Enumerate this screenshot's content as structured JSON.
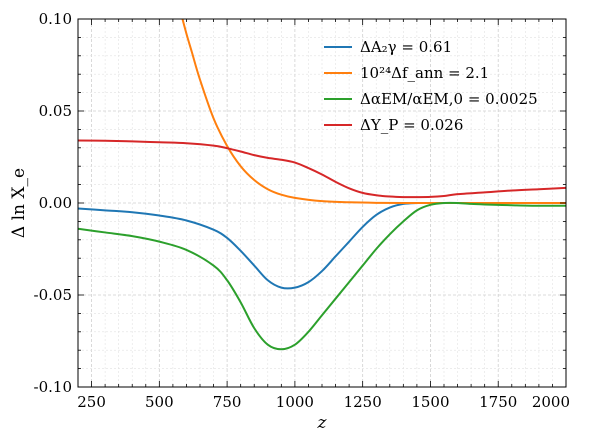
{
  "chart_data": {
    "type": "line",
    "xlabel": "z",
    "ylabel": "Δ  ln X_e",
    "xlim": [
      200,
      2000
    ],
    "ylim": [
      -0.1,
      0.1
    ],
    "x_ticks": [
      250,
      500,
      750,
      1000,
      1250,
      1500,
      1750,
      2000
    ],
    "x_tick_labels": [
      "250",
      "500",
      "750",
      "1000",
      "1250",
      "1500",
      "1750",
      "2000"
    ],
    "y_ticks": [
      -0.1,
      -0.05,
      0.0,
      0.05,
      0.1
    ],
    "y_tick_labels": [
      "-0.10",
      "-0.05",
      "0.00",
      "0.05",
      "0.10"
    ],
    "grid": true,
    "legend_position": "top-right",
    "series": [
      {
        "name": "ΔA₂γ = 0.61",
        "color": "#1f77b4",
        "x": [
          200,
          300,
          400,
          500,
          600,
          700,
          750,
          800,
          850,
          900,
          950,
          1000,
          1050,
          1100,
          1150,
          1200,
          1250,
          1300,
          1350,
          1400,
          1450,
          1500,
          1600,
          1700,
          1800,
          1900,
          2000
        ],
        "y": [
          -0.003,
          -0.004,
          -0.005,
          -0.0068,
          -0.0095,
          -0.0145,
          -0.019,
          -0.026,
          -0.034,
          -0.042,
          -0.046,
          -0.046,
          -0.043,
          -0.037,
          -0.029,
          -0.021,
          -0.013,
          -0.0065,
          -0.0025,
          -0.0005,
          0.0,
          0.0,
          0.0,
          0.0,
          0.0,
          0.0,
          0.0
        ]
      },
      {
        "name": "10²⁴Δf_ann = 2.1",
        "color": "#ff7f0e",
        "x": [
          580,
          600,
          620,
          650,
          700,
          750,
          800,
          850,
          900,
          950,
          1000,
          1100,
          1200,
          1300,
          1400,
          1500,
          1600,
          1700,
          1800,
          1900,
          2000
        ],
        "y": [
          0.103,
          0.092,
          0.082,
          0.067,
          0.046,
          0.031,
          0.02,
          0.0125,
          0.0075,
          0.0045,
          0.0028,
          0.001,
          0.0004,
          0.0001,
          0.0,
          0.0,
          0.0,
          0.0,
          0.0,
          0.0,
          0.0
        ]
      },
      {
        "name": "ΔαEM/αEM,0 = 0.0025",
        "color": "#2ca02c",
        "x": [
          200,
          300,
          400,
          500,
          600,
          700,
          750,
          800,
          850,
          900,
          950,
          1000,
          1050,
          1100,
          1150,
          1200,
          1250,
          1300,
          1350,
          1400,
          1450,
          1500,
          1550,
          1600,
          1650,
          1700,
          1750,
          1800,
          1900,
          2000
        ],
        "y": [
          -0.014,
          -0.016,
          -0.018,
          -0.021,
          -0.0255,
          -0.034,
          -0.042,
          -0.054,
          -0.068,
          -0.077,
          -0.0795,
          -0.077,
          -0.07,
          -0.061,
          -0.052,
          -0.043,
          -0.034,
          -0.025,
          -0.017,
          -0.01,
          -0.004,
          -0.001,
          0.0,
          0.0,
          -0.0005,
          -0.0008,
          -0.001,
          -0.0012,
          -0.0015,
          -0.0015
        ]
      },
      {
        "name": "ΔY_P = 0.026",
        "color": "#d62728",
        "x": [
          200,
          300,
          400,
          500,
          600,
          700,
          750,
          800,
          850,
          900,
          950,
          1000,
          1050,
          1100,
          1150,
          1200,
          1250,
          1300,
          1350,
          1400,
          1450,
          1500,
          1550,
          1600,
          1700,
          1800,
          1900,
          2000
        ],
        "y": [
          0.034,
          0.0338,
          0.0335,
          0.033,
          0.0325,
          0.0312,
          0.0298,
          0.028,
          0.026,
          0.0245,
          0.0235,
          0.022,
          0.019,
          0.0155,
          0.0115,
          0.008,
          0.0055,
          0.0042,
          0.0035,
          0.0032,
          0.0032,
          0.0033,
          0.0038,
          0.0048,
          0.0058,
          0.0068,
          0.0075,
          0.0082
        ]
      }
    ]
  }
}
